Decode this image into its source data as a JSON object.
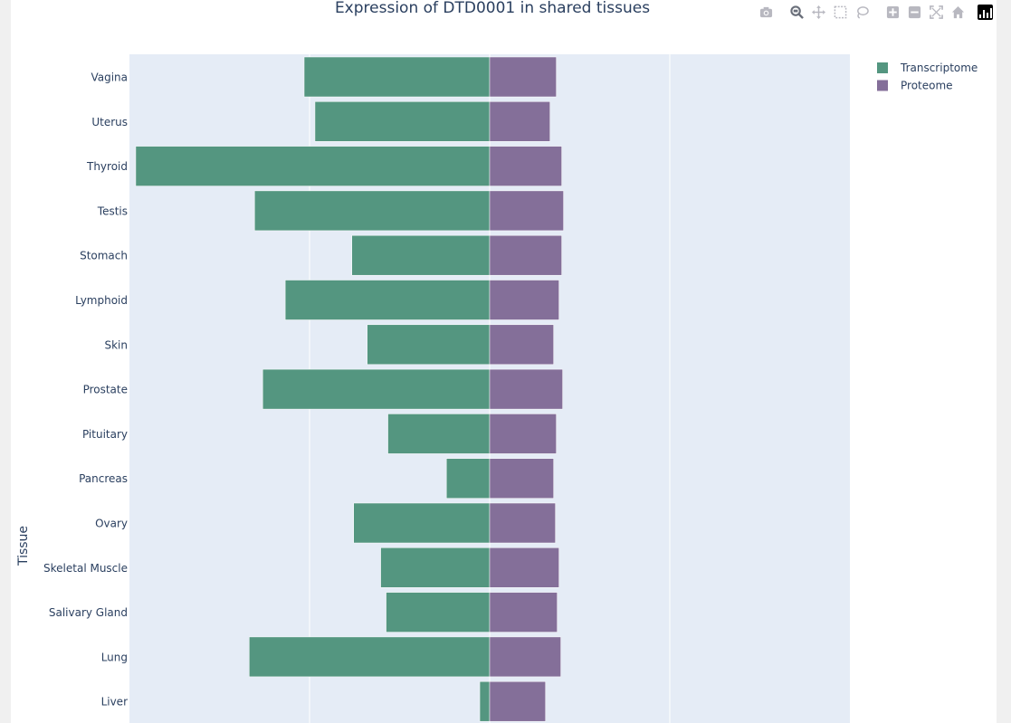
{
  "chart_data": {
    "type": "bar",
    "orientation": "horizontal-diverging",
    "title": "Expression of DTD0001 in shared tissues",
    "ylabel": "Tissue",
    "xlabel": "",
    "categories": [
      "Vagina",
      "Uterus",
      "Thyroid",
      "Testis",
      "Stomach",
      "Lymphoid",
      "Skin",
      "Prostate",
      "Pituitary",
      "Pancreas",
      "Ovary",
      "Skeletal Muscle",
      "Salivary Gland",
      "Lung",
      "Liver"
    ],
    "series": [
      {
        "name": "Transcriptome",
        "color": "#549680",
        "values": [
          -206,
          -194,
          -393,
          -261,
          -153,
          -227,
          -136,
          -252,
          -113,
          -48,
          -151,
          -121,
          -115,
          -267,
          -11
        ]
      },
      {
        "name": "Proteome",
        "color": "#846f99",
        "values": [
          74,
          67,
          80,
          82,
          80,
          77,
          71,
          81,
          74,
          71,
          73,
          77,
          75,
          79,
          62
        ]
      }
    ],
    "xlim": [
      -400,
      400
    ],
    "grid": true,
    "legend_position": "top-right"
  },
  "modebar": {
    "buttons": [
      "camera-icon",
      "zoom-icon",
      "pan-icon",
      "box-select-icon",
      "lasso-icon",
      "zoom-in-icon",
      "zoom-out-icon",
      "autoscale-icon",
      "reset-axes-icon",
      "plotly-logo"
    ]
  }
}
